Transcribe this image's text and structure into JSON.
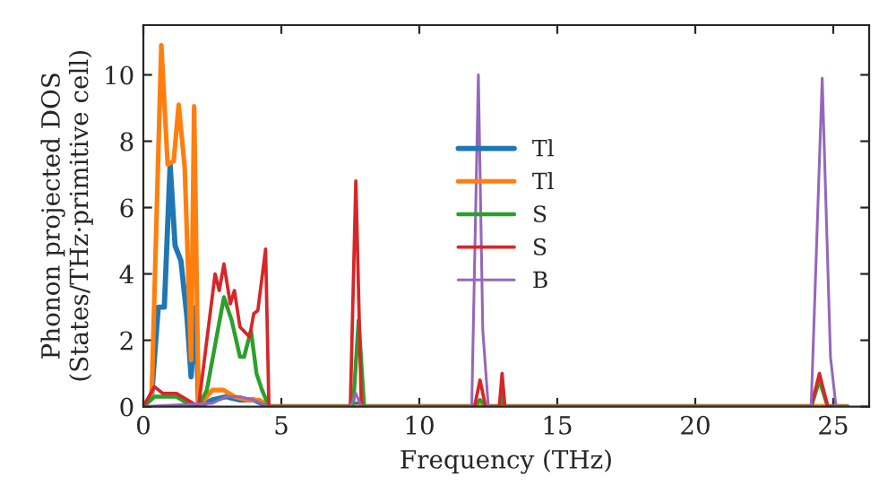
{
  "chart_data": {
    "type": "line",
    "xlabel": "Frequency (THz)",
    "ylabel": "Phonon projected DOS\n(States/THz·primitive cell)",
    "xlim": [
      0,
      26.3
    ],
    "ylim": [
      0,
      11.5
    ],
    "xticks": [
      0,
      5,
      10,
      15,
      20,
      25
    ],
    "yticks": [
      0,
      2,
      4,
      6,
      8,
      10
    ],
    "grid": false,
    "legend": "center",
    "marker": "none",
    "line_style": "solid",
    "series": [
      {
        "name": "Tl",
        "color": "#1f77b4",
        "x": [
          0,
          0.3,
          0.54,
          0.76,
          0.97,
          1.15,
          1.36,
          1.58,
          1.73,
          1.9,
          2.0,
          2.5,
          3.0,
          3.5,
          4.0,
          4.55,
          7.6,
          7.8,
          8.0,
          25.5
        ],
        "values": [
          0,
          0.3,
          3.0,
          3.0,
          7.3,
          4.85,
          4.4,
          2.7,
          0.9,
          3.0,
          0,
          0.2,
          0.3,
          0.2,
          0.2,
          0,
          0,
          0.1,
          0,
          0
        ]
      },
      {
        "name": "Tl",
        "color": "#ff7f0e",
        "x": [
          0,
          0.3,
          0.65,
          0.88,
          1.1,
          1.28,
          1.5,
          1.73,
          1.84,
          2.0,
          2.5,
          2.9,
          3.3,
          3.8,
          4.2,
          4.55,
          25.5
        ],
        "values": [
          0,
          0.3,
          10.9,
          7.3,
          7.4,
          9.1,
          7.2,
          1.4,
          9.05,
          0,
          0.5,
          0.5,
          0.3,
          0.2,
          0.2,
          0,
          0
        ]
      },
      {
        "name": "S",
        "color": "#2ca02c",
        "x": [
          0,
          0.4,
          0.7,
          1.2,
          1.8,
          2.0,
          2.3,
          2.92,
          3.2,
          3.5,
          3.65,
          3.9,
          4.1,
          4.3,
          4.55,
          7.6,
          7.8,
          8.0,
          12.0,
          12.2,
          12.4,
          12.9,
          13.0,
          13.1,
          24.2,
          24.5,
          24.8,
          25.5
        ],
        "values": [
          0,
          0.3,
          0.3,
          0.3,
          0,
          0,
          0.5,
          3.3,
          2.6,
          1.5,
          1.5,
          2.3,
          1.0,
          0.5,
          0,
          0,
          2.6,
          0,
          0,
          0.2,
          0,
          0,
          0.3,
          0,
          0,
          0.8,
          0,
          0
        ]
      },
      {
        "name": "S",
        "color": "#d62728",
        "x": [
          0,
          0.4,
          0.7,
          1.2,
          1.8,
          2.0,
          2.6,
          2.75,
          2.92,
          3.15,
          3.3,
          3.5,
          3.85,
          4.0,
          4.15,
          4.43,
          4.55,
          7.5,
          7.7,
          7.9,
          12.0,
          12.2,
          12.4,
          12.9,
          13.0,
          13.1,
          24.2,
          24.5,
          24.8,
          25.5
        ],
        "values": [
          0,
          0.6,
          0.4,
          0.4,
          0.1,
          0,
          4.0,
          3.5,
          4.3,
          3.1,
          3.5,
          2.4,
          2.1,
          2.8,
          2.9,
          4.75,
          0,
          0,
          6.8,
          0,
          0,
          0.8,
          0,
          0,
          1.0,
          0,
          0,
          1.0,
          0,
          0
        ]
      },
      {
        "name": "B",
        "color": "#9467bd",
        "x": [
          0,
          2.5,
          3.0,
          3.5,
          4.0,
          4.55,
          7.5,
          7.7,
          7.9,
          11.9,
          12.14,
          12.3,
          12.5,
          24.2,
          24.6,
          24.9,
          25.1,
          25.5
        ],
        "values": [
          0,
          0.1,
          0.3,
          0.3,
          0.2,
          0,
          0,
          0.4,
          0,
          0,
          10.0,
          2.3,
          0,
          0,
          9.9,
          1.5,
          0,
          0
        ]
      }
    ]
  }
}
